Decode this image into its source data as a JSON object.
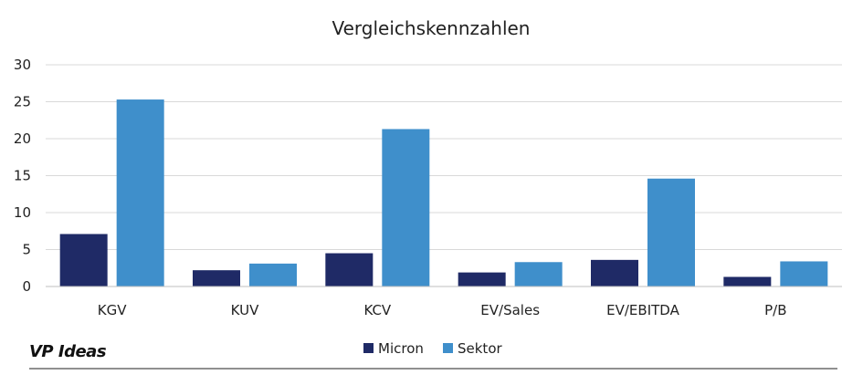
{
  "brand": {
    "label": "VP Ideas"
  },
  "chart_data": {
    "type": "bar",
    "title": "Vergleichskennzahlen",
    "xlabel": "",
    "ylabel": "",
    "categories": [
      "KGV",
      "KUV",
      "KCV",
      "EV/Sales",
      "EV/EBITDA",
      "P/B"
    ],
    "series": [
      {
        "name": "Micron",
        "color": "#1F2A66",
        "values": [
          7.1,
          2.2,
          4.5,
          1.9,
          3.6,
          1.3
        ]
      },
      {
        "name": "Sektor",
        "color": "#3F8FCB",
        "values": [
          25.3,
          3.1,
          21.3,
          3.3,
          14.6,
          3.4
        ]
      }
    ],
    "ylim": [
      0,
      30
    ],
    "yticks": [
      0,
      5,
      10,
      15,
      20,
      25,
      30
    ],
    "grid": true,
    "legend": "bottom"
  },
  "colors": {
    "gridline": "#d9d9d9",
    "axis": "#bfbfbf",
    "rule": "#222222"
  }
}
